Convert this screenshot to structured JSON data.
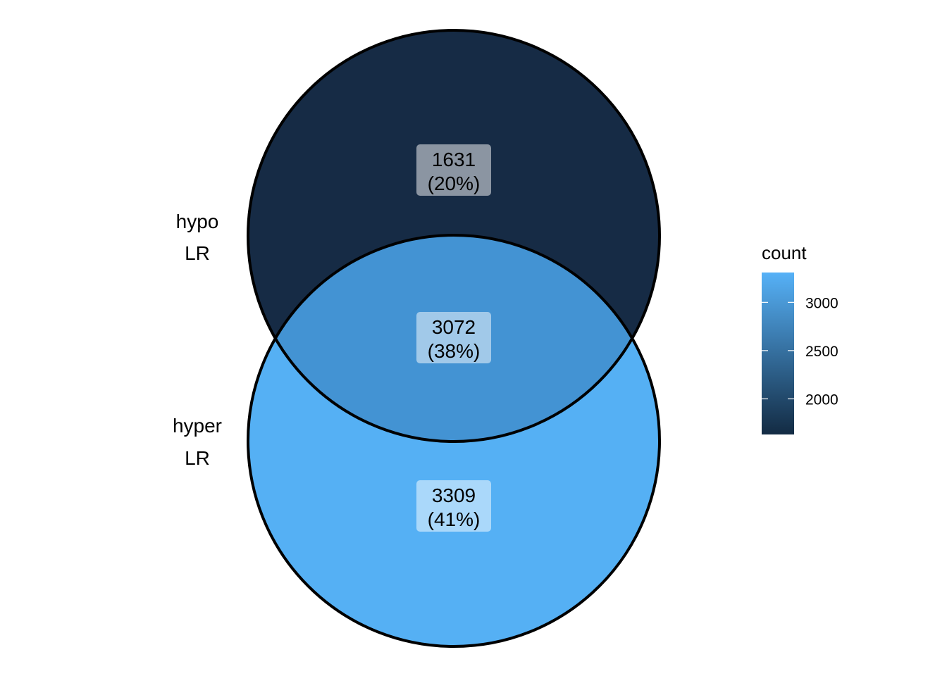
{
  "chart_data": {
    "type": "venn",
    "sets": [
      {
        "name_line1": "hypo",
        "name_line2": "LR"
      },
      {
        "name_line1": "hyper",
        "name_line2": "LR"
      }
    ],
    "regions": [
      {
        "id": "hypo_only",
        "count": "1631",
        "percent": "(20%)",
        "value": 1631,
        "color": "#162b45"
      },
      {
        "id": "both",
        "count": "3072",
        "percent": "(38%)",
        "value": 3072,
        "color": "#4393d3"
      },
      {
        "id": "hyper_only",
        "count": "3309",
        "percent": "(41%)",
        "value": 3309,
        "color": "#55b0f4"
      }
    ],
    "legend": {
      "title": "count",
      "min": 1631,
      "max": 3309,
      "ticks": [
        "2000",
        "2500",
        "3000"
      ],
      "tick_values": [
        2000,
        2500,
        3000
      ],
      "low_color": "#132b43",
      "high_color": "#56b1f7",
      "placement": "right"
    }
  }
}
